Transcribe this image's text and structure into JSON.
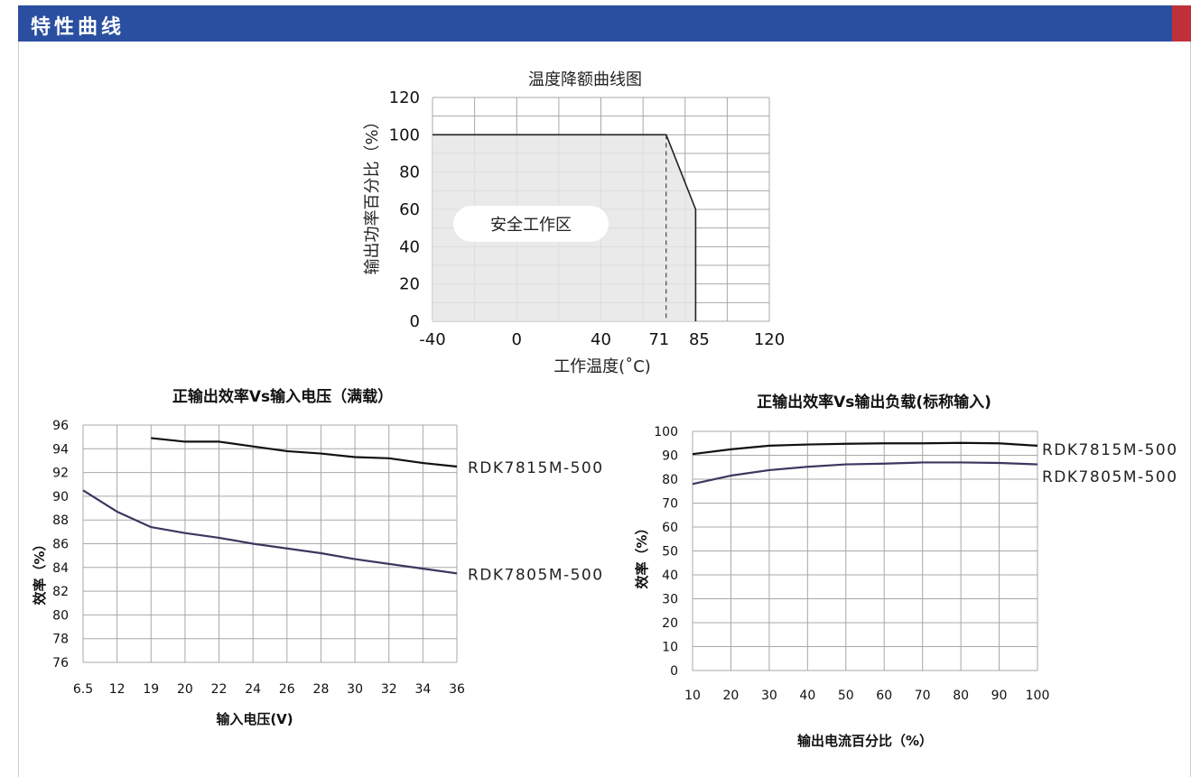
{
  "header": {
    "title": "特性曲线",
    "bar_color": "#2a4fa0",
    "accent_color": "#c0303a"
  },
  "chart_data": [
    {
      "type": "area",
      "title": "温度降额曲线图",
      "xlabel": "工作温度(˚C)",
      "ylabel": "输出功率百分比（%）",
      "x_ticks": [
        "-40",
        "0",
        "40",
        "71",
        "85",
        "120"
      ],
      "y_ticks": [
        "0",
        "20",
        "40",
        "60",
        "80",
        "100",
        "120"
      ],
      "xlim": [
        -40,
        120
      ],
      "ylim": [
        0,
        120
      ],
      "annotation": "安全工作区",
      "series": [
        {
          "x": [
            -40,
            71,
            85,
            85
          ],
          "y": [
            100,
            100,
            60,
            0
          ]
        }
      ],
      "fill_color": "#e6e6e6",
      "grid": true
    },
    {
      "type": "line",
      "title": "正输出效率Vs输入电压（满载）",
      "xlabel": "输入电压(V)",
      "ylabel": "效率（%）",
      "x_ticks": [
        "6.5",
        "12",
        "19",
        "20",
        "22",
        "24",
        "26",
        "28",
        "30",
        "32",
        "34",
        "36"
      ],
      "y_ticks": [
        "76",
        "78",
        "80",
        "82",
        "84",
        "86",
        "88",
        "90",
        "92",
        "94",
        "96"
      ],
      "ylim": [
        76,
        96
      ],
      "grid": true,
      "series": [
        {
          "name": "RDK7815M-500",
          "color": "#111111",
          "x_idx": [
            2,
            3,
            4,
            5,
            6,
            7,
            8,
            9,
            10,
            11
          ],
          "y": [
            94.9,
            94.6,
            94.6,
            94.2,
            93.8,
            93.6,
            93.3,
            93.2,
            92.8,
            92.5
          ]
        },
        {
          "name": "RDK7805M-500",
          "color": "#3a3860",
          "x_idx": [
            0,
            1,
            2,
            3,
            4,
            5,
            6,
            7,
            8,
            9,
            10,
            11
          ],
          "y": [
            90.5,
            88.7,
            87.4,
            86.9,
            86.5,
            86.0,
            85.6,
            85.2,
            84.7,
            84.3,
            83.9,
            83.5
          ]
        }
      ]
    },
    {
      "type": "line",
      "title": "正输出效率Vs输出负载(标称输入)",
      "xlabel": "输出电流百分比（%）",
      "ylabel": "效率（%）",
      "x_ticks": [
        "10",
        "20",
        "30",
        "40",
        "50",
        "60",
        "70",
        "80",
        "90",
        "100"
      ],
      "y_ticks": [
        "0",
        "10",
        "20",
        "30",
        "40",
        "50",
        "60",
        "70",
        "80",
        "90",
        "100"
      ],
      "xlim": [
        10,
        100
      ],
      "ylim": [
        0,
        100
      ],
      "grid": true,
      "series": [
        {
          "name": "RDK7815M-500",
          "color": "#111111",
          "x": [
            10,
            20,
            30,
            40,
            50,
            60,
            70,
            80,
            90,
            100
          ],
          "y": [
            90.5,
            92.5,
            94.0,
            94.5,
            94.8,
            95.0,
            95.0,
            95.2,
            95.0,
            94.0
          ]
        },
        {
          "name": "RDK7805M-500",
          "color": "#3a3860",
          "x": [
            10,
            20,
            30,
            40,
            50,
            60,
            70,
            80,
            90,
            100
          ],
          "y": [
            78.0,
            81.5,
            83.8,
            85.2,
            86.2,
            86.5,
            87.0,
            87.0,
            86.8,
            86.2
          ]
        }
      ]
    }
  ]
}
